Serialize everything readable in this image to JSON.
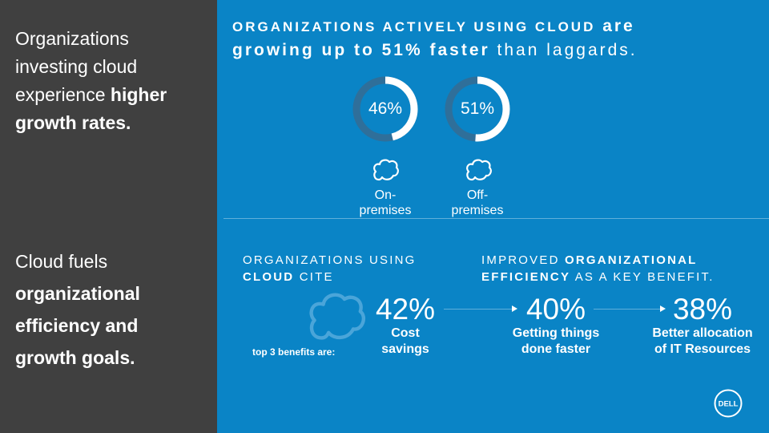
{
  "left": {
    "block1": {
      "line1": "Organizations",
      "line2": "investing cloud",
      "line3a": "experience ",
      "line3b": "higher",
      "line4": "growth rates."
    },
    "block2": {
      "line1": "Cloud fuels",
      "line2": "organizational",
      "line3": "efficiency and",
      "line4": "growth goals."
    }
  },
  "headline": {
    "p1": "ORGANIZATIONS ACTIVELY USING CLOUD",
    "p2": " are",
    "p3": "growing up to 51% faster",
    "p4": " than laggards."
  },
  "rings": [
    {
      "value": "46%",
      "fraction": 0.46,
      "label1": "On-",
      "label2": "premises"
    },
    {
      "value": "51%",
      "fraction": 0.51,
      "label1": "Off-",
      "label2": "premises"
    }
  ],
  "sub_left": {
    "l1": "ORGANIZATIONS USING",
    "l2a": "CLOUD",
    "l2b": " CITE"
  },
  "sub_right": {
    "l1a": "IMPROVED ",
    "l1b": "ORGANIZATIONAL",
    "l2a": "EFFICIENCY",
    "l2b": " AS A KEY BENEFIT."
  },
  "top3_label": "top 3 benefits are:",
  "stats": [
    {
      "num": "42%",
      "cap1": "Cost",
      "cap2": "savings"
    },
    {
      "num": "40%",
      "cap1": "Getting things",
      "cap2": "done faster"
    },
    {
      "num": "38%",
      "cap1": "Better allocation",
      "cap2": "of IT Resources"
    }
  ],
  "logo_text": "DELL",
  "colors": {
    "left_bg": "#404040",
    "right_bg": "#0a84c6",
    "ring_track": "#2f6f9a",
    "ring_fill": "#ffffff"
  },
  "icons": [
    "cloud-icon",
    "dell-logo"
  ]
}
